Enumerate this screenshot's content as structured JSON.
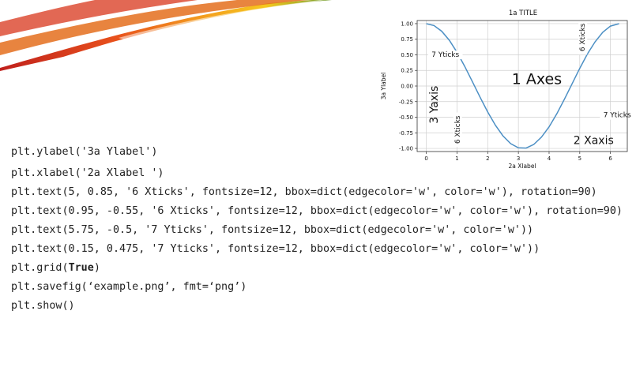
{
  "code_lines": [
    "plt.ylabel('3a Ylabel')",
    "plt.xlabel('2a Xlabel ')",
    "plt.text(5, 0.85, '6 Xticks', fontsize=12, bbox=dict(edgecolor='w', color='w'), rotation=90)",
    "plt.text(0.95, -0.55, '6 Xticks', fontsize=12, bbox=dict(edgecolor='w', color='w'), rotation=90)",
    "plt.text(5.75, -0.5, '7 Yticks', fontsize=12, bbox=dict(edgecolor='w', color='w'))",
    "plt.text(0.15, 0.475, '7 Yticks', fontsize=12, bbox=dict(edgecolor='w', color='w'))",
    "plt.grid(",
    "plt.savefig(‘example.png’, fmt=‘png’)",
    "plt.show()"
  ],
  "code_grid_keyword": "True",
  "code_grid_close": ")",
  "chart_data": {
    "type": "line",
    "title": "1a TITLE",
    "xlabel": "2a Xlabel",
    "ylabel": "3a Ylabel",
    "xlim": [
      -0.3,
      6.55
    ],
    "ylim": [
      -1.05,
      1.05
    ],
    "xticks": [
      0,
      1,
      2,
      3,
      4,
      5,
      6
    ],
    "yticks": [
      1.0,
      0.75,
      0.5,
      0.25,
      0.0,
      -0.25,
      -0.5,
      -0.75,
      -1.0
    ],
    "ytick_labels": [
      "1.00",
      "0.75",
      "0.50",
      "0.25",
      "0.00",
      "-0.25",
      "-0.50",
      "-0.75",
      "-1.00"
    ],
    "grid": true,
    "series": [
      {
        "color": "#4c8fc4",
        "x": [
          0,
          0.25,
          0.5,
          0.75,
          1.0,
          1.25,
          1.5,
          1.75,
          2.0,
          2.25,
          2.5,
          2.75,
          3.0,
          3.25,
          3.5,
          3.75,
          4.0,
          4.25,
          4.5,
          4.75,
          5.0,
          5.25,
          5.5,
          5.75,
          6.0,
          6.28
        ],
        "y": [
          1.0,
          0.969,
          0.878,
          0.732,
          0.54,
          0.315,
          0.071,
          -0.178,
          -0.416,
          -0.628,
          -0.801,
          -0.924,
          -0.99,
          -0.994,
          -0.936,
          -0.82,
          -0.654,
          -0.446,
          -0.211,
          0.036,
          0.284,
          0.513,
          0.709,
          0.861,
          0.96,
          1.0
        ]
      }
    ],
    "annotations": [
      {
        "text": "1 Axes",
        "x": 3.6,
        "y": 0.1,
        "size": 19,
        "rotation": 0
      },
      {
        "text": "2 Xaxis",
        "x": 5.45,
        "y": -0.88,
        "size": 14,
        "rotation": 0
      },
      {
        "text": "3 Yaxis",
        "x": 0.27,
        "y": -0.3,
        "size": 14,
        "rotation": -90
      },
      {
        "text": "7 Yticks",
        "x": 0.62,
        "y": 0.5,
        "size": 9,
        "rotation": 0
      },
      {
        "text": "7 Yticks",
        "x": 6.22,
        "y": -0.47,
        "size": 9,
        "rotation": 0
      },
      {
        "text": "6 Xticks",
        "x": 5.1,
        "y": 0.78,
        "size": 9,
        "rotation": -90
      },
      {
        "text": "6 Xticks",
        "x": 1.02,
        "y": -0.7,
        "size": 9,
        "rotation": -90
      }
    ]
  }
}
